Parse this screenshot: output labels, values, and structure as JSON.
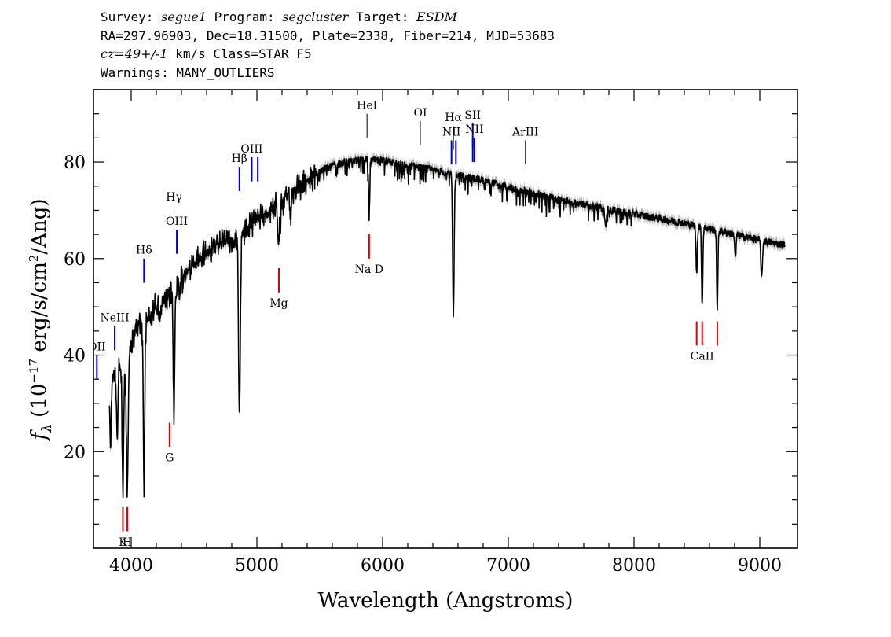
{
  "header": {
    "survey_label": "Survey: ",
    "survey": "segue1",
    "program_label": " Program: ",
    "program": "segcluster",
    "target_label": " Target: ",
    "target": "ESDM",
    "line2": "RA=297.96903, Dec=18.31500, Plate=2338, Fiber=214, MJD=53683",
    "cz": "cz=49+/-1",
    "line3_rest": " km/s Class=STAR F5",
    "line4": "Warnings: MANY_OUTLIERS"
  },
  "chart_data": {
    "type": "line",
    "xlabel": "Wavelength (Angstroms)",
    "ylabel": "f_λ (10^-17 erg/s/cm^2/Ang)",
    "ylabel_parts": {
      "f": "f",
      "lambda": "λ",
      "open": " (10",
      "exp1": "−17",
      "mid": " erg/s/cm",
      "exp2": "2",
      "close": "/Ang)"
    },
    "xlim": [
      3700,
      9300
    ],
    "ylim": [
      0,
      95
    ],
    "xticks": [
      4000,
      5000,
      6000,
      7000,
      8000,
      9000
    ],
    "yticks": [
      20,
      40,
      60,
      80
    ],
    "colors": {
      "spectrum": "#000000",
      "error_band": "#b4b4b4",
      "emission": "#0000cc",
      "absorption": "#dd0000",
      "misc": "#000000"
    },
    "spectrum": {
      "name": "flux",
      "continuum_points": [
        [
          3825,
          33
        ],
        [
          3870,
          37
        ],
        [
          3950,
          38
        ],
        [
          4000,
          42
        ],
        [
          4050,
          46
        ],
        [
          4100,
          47
        ],
        [
          4150,
          48
        ],
        [
          4200,
          50
        ],
        [
          4250,
          51
        ],
        [
          4300,
          52
        ],
        [
          4360,
          54
        ],
        [
          4400,
          56
        ],
        [
          4500,
          59
        ],
        [
          4600,
          61
        ],
        [
          4700,
          63
        ],
        [
          4800,
          64
        ],
        [
          4900,
          66
        ],
        [
          5000,
          68
        ],
        [
          5100,
          70
        ],
        [
          5200,
          72
        ],
        [
          5300,
          74
        ],
        [
          5400,
          76
        ],
        [
          5500,
          78
        ],
        [
          5600,
          79.2
        ],
        [
          5700,
          80
        ],
        [
          5800,
          80.3
        ],
        [
          5900,
          80.4
        ],
        [
          6000,
          80.2
        ],
        [
          6100,
          79.8
        ],
        [
          6200,
          79.3
        ],
        [
          6300,
          78.9
        ],
        [
          6400,
          78.3
        ],
        [
          6500,
          77.8
        ],
        [
          6600,
          77.2
        ],
        [
          6700,
          76.8
        ],
        [
          6800,
          76.2
        ],
        [
          7000,
          74.8
        ],
        [
          7200,
          73.5
        ],
        [
          7400,
          72.2
        ],
        [
          7600,
          71.2
        ],
        [
          7800,
          70.2
        ],
        [
          8000,
          69.2
        ],
        [
          8200,
          68.3
        ],
        [
          8400,
          67.3
        ],
        [
          8600,
          66.2
        ],
        [
          8800,
          65.0
        ],
        [
          9000,
          63.8
        ],
        [
          9200,
          62.8
        ]
      ],
      "absorption_features": [
        [
          3835,
          12,
          6
        ],
        [
          3889,
          14,
          6
        ],
        [
          3934,
          26,
          6
        ],
        [
          3969,
          27,
          7
        ],
        [
          4102,
          34,
          6
        ],
        [
          4227,
          4,
          6
        ],
        [
          4340,
          26,
          6
        ],
        [
          4384,
          3,
          5
        ],
        [
          4861,
          38,
          7
        ],
        [
          5167,
          5,
          5
        ],
        [
          5173,
          5,
          5
        ],
        [
          5184,
          5,
          6
        ],
        [
          5270,
          4,
          6
        ],
        [
          5890,
          8,
          3
        ],
        [
          5896,
          8,
          3
        ],
        [
          6563,
          29,
          6
        ],
        [
          8498,
          10,
          5
        ],
        [
          8542,
          16,
          5
        ],
        [
          8662,
          16,
          5
        ],
        [
          8806,
          5,
          5
        ],
        [
          9015,
          8,
          6
        ],
        [
          7774,
          4,
          6
        ]
      ]
    },
    "lines": [
      {
        "label": "OII",
        "wave": 3727,
        "type": "emission",
        "y1": 35,
        "y2": 40,
        "label_y": 41
      },
      {
        "label": "NeIII",
        "wave": 3869,
        "type": "emission",
        "y1": 41,
        "y2": 46,
        "label_y": 47
      },
      {
        "label": "Hδ",
        "wave": 4102,
        "type": "emission",
        "y1": 55,
        "y2": 60,
        "label_y": 61
      },
      {
        "label": "G",
        "wave": 4305,
        "type": "absorption",
        "y1": 21,
        "y2": 26,
        "label_y": 18
      },
      {
        "label": "Hγ",
        "wave": 4341,
        "type": "misc",
        "y1": 66,
        "y2": 71,
        "label_y": 72
      },
      {
        "label": "OIII",
        "wave": 4363,
        "type": "emission",
        "y1": 61,
        "y2": 66,
        "label_y": 67
      },
      {
        "label": "Hβ",
        "wave": 4861,
        "type": "emission",
        "y1": 74,
        "y2": 79,
        "label_y": 80
      },
      {
        "label": "OIII",
        "wave": 4959,
        "type": "emission",
        "y1": 76,
        "y2": 81,
        "label_y": 82
      },
      {
        "label": "",
        "wave": 5007,
        "type": "emission",
        "y1": 76,
        "y2": 81,
        "label_y": 82
      },
      {
        "label": "Mg",
        "wave": 5175,
        "type": "absorption",
        "y1": 53,
        "y2": 58,
        "label_y": 50
      },
      {
        "label": "HeI",
        "wave": 5876,
        "type": "misc",
        "y1": 85,
        "y2": 90,
        "label_y": 91
      },
      {
        "label": "Na D",
        "wave": 5893,
        "type": "absorption",
        "y1": 60,
        "y2": 65,
        "label_y": 57
      },
      {
        "label": "OI",
        "wave": 6300,
        "type": "misc",
        "y1": 83.5,
        "y2": 88.5,
        "label_y": 89.5
      },
      {
        "label": "NII",
        "wave": 6548,
        "type": "emission",
        "y1": 79.5,
        "y2": 84.5,
        "label_y": 85.5
      },
      {
        "label": "Hα",
        "wave": 6563,
        "type": "misc",
        "y1": 82.5,
        "y2": 87.5,
        "label_y": 88.5
      },
      {
        "label": "",
        "wave": 6583,
        "type": "emission",
        "y1": 79.5,
        "y2": 84.5,
        "label_y": 85.5
      },
      {
        "label": "SII",
        "wave": 6717,
        "type": "emission",
        "y1": 83,
        "y2": 88,
        "label_y": 89
      },
      {
        "label": "NII",
        "wave": 6731,
        "type": "emission",
        "y1": 80,
        "y2": 85,
        "label_y": 86
      },
      {
        "label": "",
        "wave": 6717,
        "type": "emission",
        "y1": 80,
        "y2": 85,
        "label_y": 86
      },
      {
        "label": "ArIII",
        "wave": 7136,
        "type": "misc",
        "y1": 79.5,
        "y2": 84.5,
        "label_y": 85.5
      },
      {
        "label": "K",
        "wave": 3934,
        "type": "absorption",
        "y1": 3.5,
        "y2": 8.5,
        "label_y": 0.5
      },
      {
        "label": "H",
        "wave": 3969,
        "type": "absorption",
        "y1": 3.5,
        "y2": 8.5,
        "label_y": 0.5
      },
      {
        "label": "CaII",
        "wave": 8542,
        "type": "absorption",
        "y1": 42,
        "y2": 47,
        "label_y": 39
      },
      {
        "label": "",
        "wave": 8498,
        "type": "absorption",
        "y1": 42,
        "y2": 47,
        "label_y": 39
      },
      {
        "label": "",
        "wave": 8662,
        "type": "absorption",
        "y1": 42,
        "y2": 47,
        "label_y": 39
      }
    ]
  }
}
